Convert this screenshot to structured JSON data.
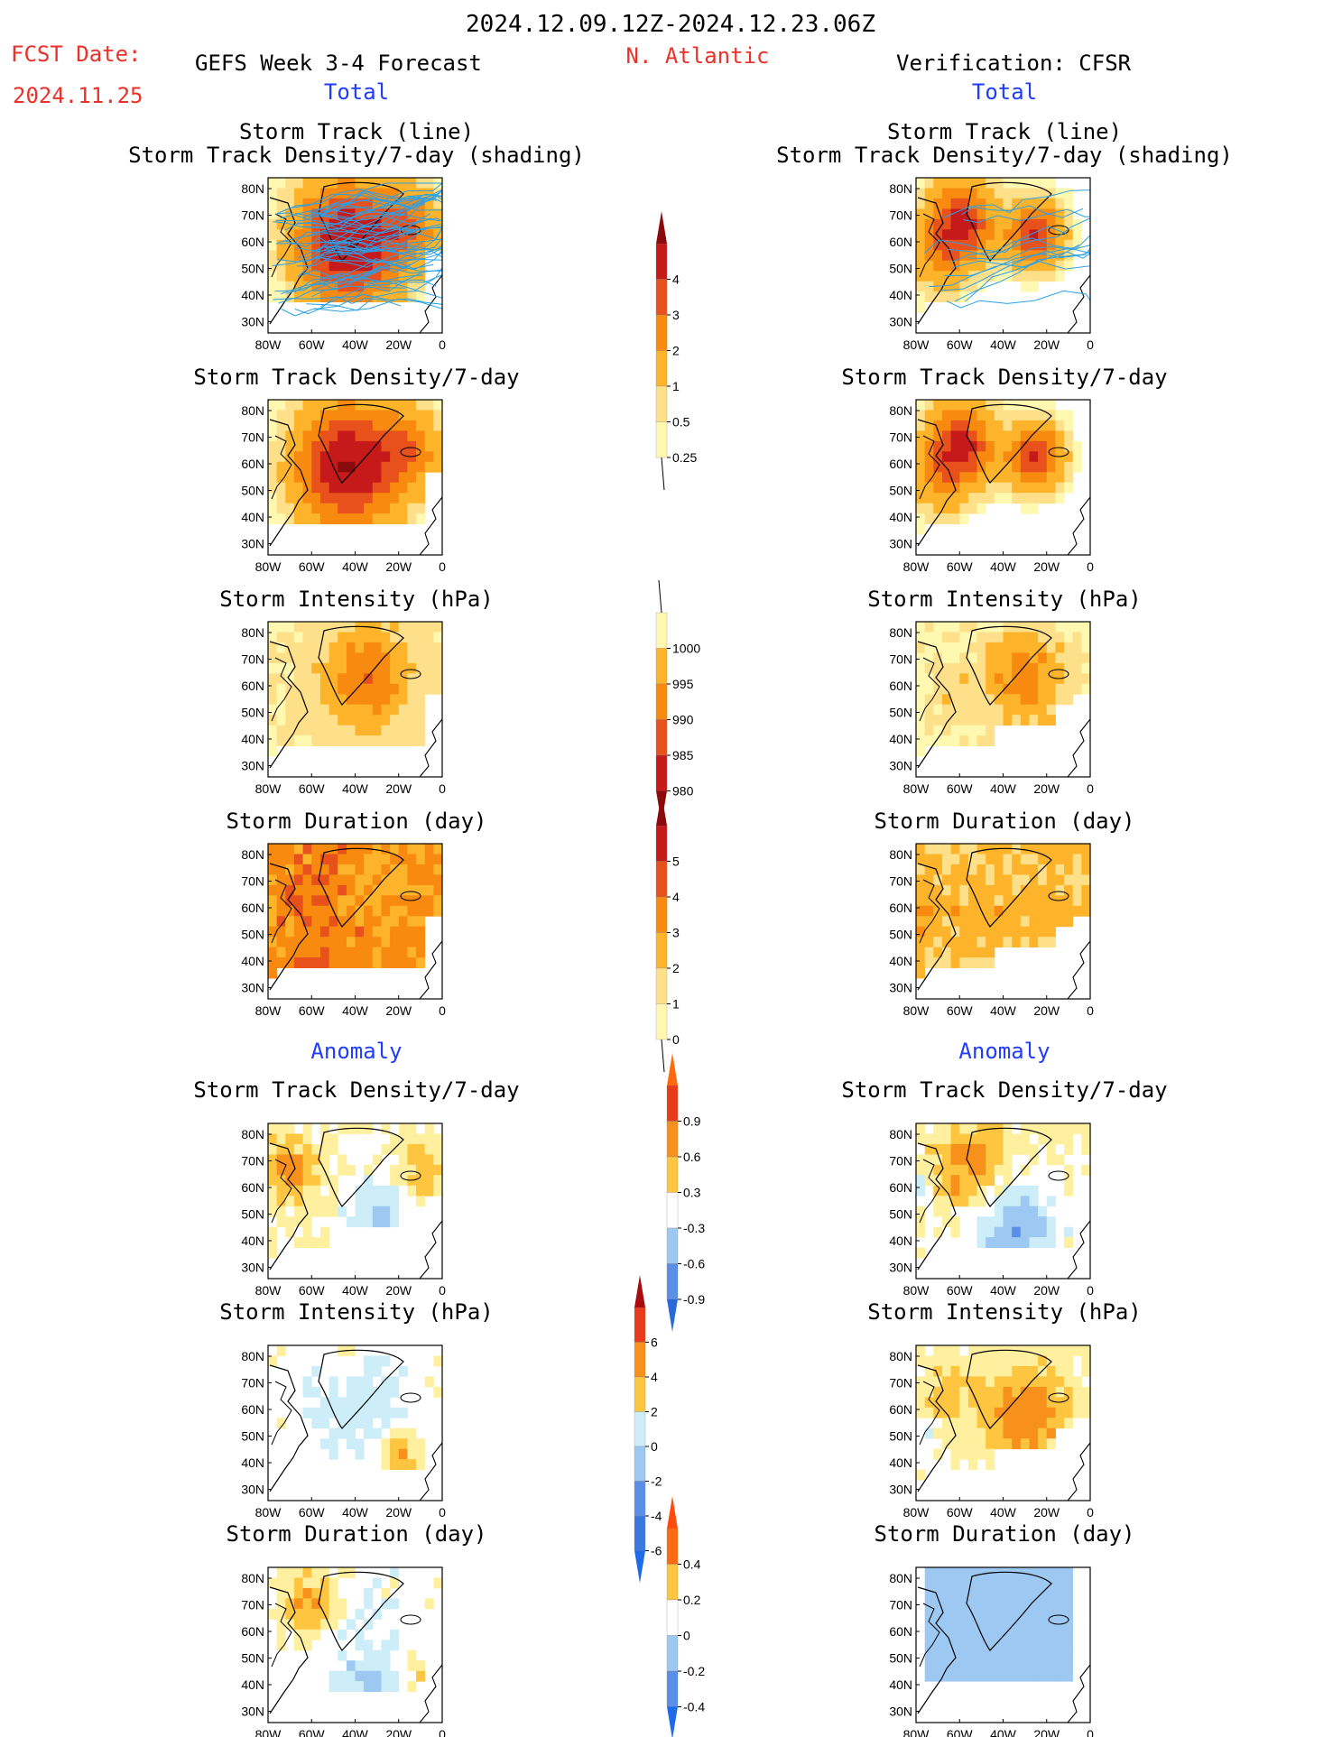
{
  "header": {
    "date_range": "2024.12.09.12Z-2024.12.23.06Z",
    "fcst_label": "FCST Date:",
    "fcst_date": "2024.11.25",
    "left_title": "GEFS Week 3-4 Forecast",
    "region": "N. Atlantic",
    "right_title": "Verification: CFSR",
    "section_total": "Total",
    "section_anomaly": "Anomaly"
  },
  "colors": {
    "text_red": "#e8322a",
    "text_blue": "#1f3cff",
    "track_line": "#2aa0e8"
  },
  "axes": {
    "lat_ticks": [
      "80N",
      "70N",
      "60N",
      "50N",
      "40N",
      "30N"
    ],
    "lon_ticks": [
      "80W",
      "60W",
      "40W",
      "20W",
      "0"
    ]
  },
  "panels": {
    "track_title_1": "Storm Track (line)",
    "track_title_2": "Storm Track Density/7-day (shading)",
    "density": "Storm Track Density/7-day",
    "intensity": "Storm Intensity (hPa)",
    "duration": "Storm Duration (day)"
  },
  "colorbars": {
    "density_total": [
      "4",
      "3",
      "2",
      "1",
      "0.5",
      "0.25"
    ],
    "intensity_total": [
      "1000",
      "995",
      "990",
      "985",
      "980"
    ],
    "duration_total": [
      "5",
      "4",
      "3",
      "2",
      "1",
      "0"
    ],
    "density_anom": [
      "0.9",
      "0.6",
      "0.3",
      "-0.3",
      "-0.6",
      "-0.9"
    ],
    "intensity_anom": [
      "6",
      "4",
      "2",
      "0",
      "-2",
      "-4",
      "-6"
    ],
    "duration_anom": [
      "0.4",
      "0.2",
      "0",
      "-0.2",
      "-0.4"
    ]
  },
  "chart_data": {
    "type": "heatmap",
    "region": "N. Atlantic",
    "lon_range": [
      -80,
      0
    ],
    "lat_range": [
      25,
      85
    ],
    "panels": [
      {
        "column": "GEFS Week 3-4 Forecast",
        "section": "Total",
        "field": "Storm Track Density/7-day",
        "max_value": 4,
        "peak_region": "60-70N 60W-10W"
      },
      {
        "column": "GEFS Week 3-4 Forecast",
        "section": "Total",
        "field": "Storm Intensity (hPa)",
        "min_value": 980
      },
      {
        "column": "GEFS Week 3-4 Forecast",
        "section": "Total",
        "field": "Storm Duration (day)",
        "typical_value": 3
      },
      {
        "column": "GEFS Week 3-4 Forecast",
        "section": "Anomaly",
        "field": "Storm Track Density/7-day",
        "range": [
          -0.9,
          0.9
        ]
      },
      {
        "column": "GEFS Week 3-4 Forecast",
        "section": "Anomaly",
        "field": "Storm Intensity (hPa)",
        "range": [
          -6,
          6
        ]
      },
      {
        "column": "GEFS Week 3-4 Forecast",
        "section": "Anomaly",
        "field": "Storm Duration (day)",
        "range": [
          -0.4,
          0.4
        ]
      },
      {
        "column": "Verification: CFSR",
        "section": "Total",
        "field": "Storm Track Density/7-day",
        "max_value": 4
      },
      {
        "column": "Verification: CFSR",
        "section": "Total",
        "field": "Storm Intensity (hPa)",
        "min_value": 980
      },
      {
        "column": "Verification: CFSR",
        "section": "Total",
        "field": "Storm Duration (day)",
        "typical_value": 2
      },
      {
        "column": "Verification: CFSR",
        "section": "Anomaly",
        "field": "Storm Track Density/7-day",
        "range": [
          -0.9,
          0.9
        ]
      },
      {
        "column": "Verification: CFSR",
        "section": "Anomaly",
        "field": "Storm Intensity (hPa)",
        "range": [
          -6,
          6
        ]
      },
      {
        "column": "Verification: CFSR",
        "section": "Anomaly",
        "field": "Storm Duration (day)",
        "range": [
          -0.4,
          0.4
        ]
      }
    ]
  }
}
